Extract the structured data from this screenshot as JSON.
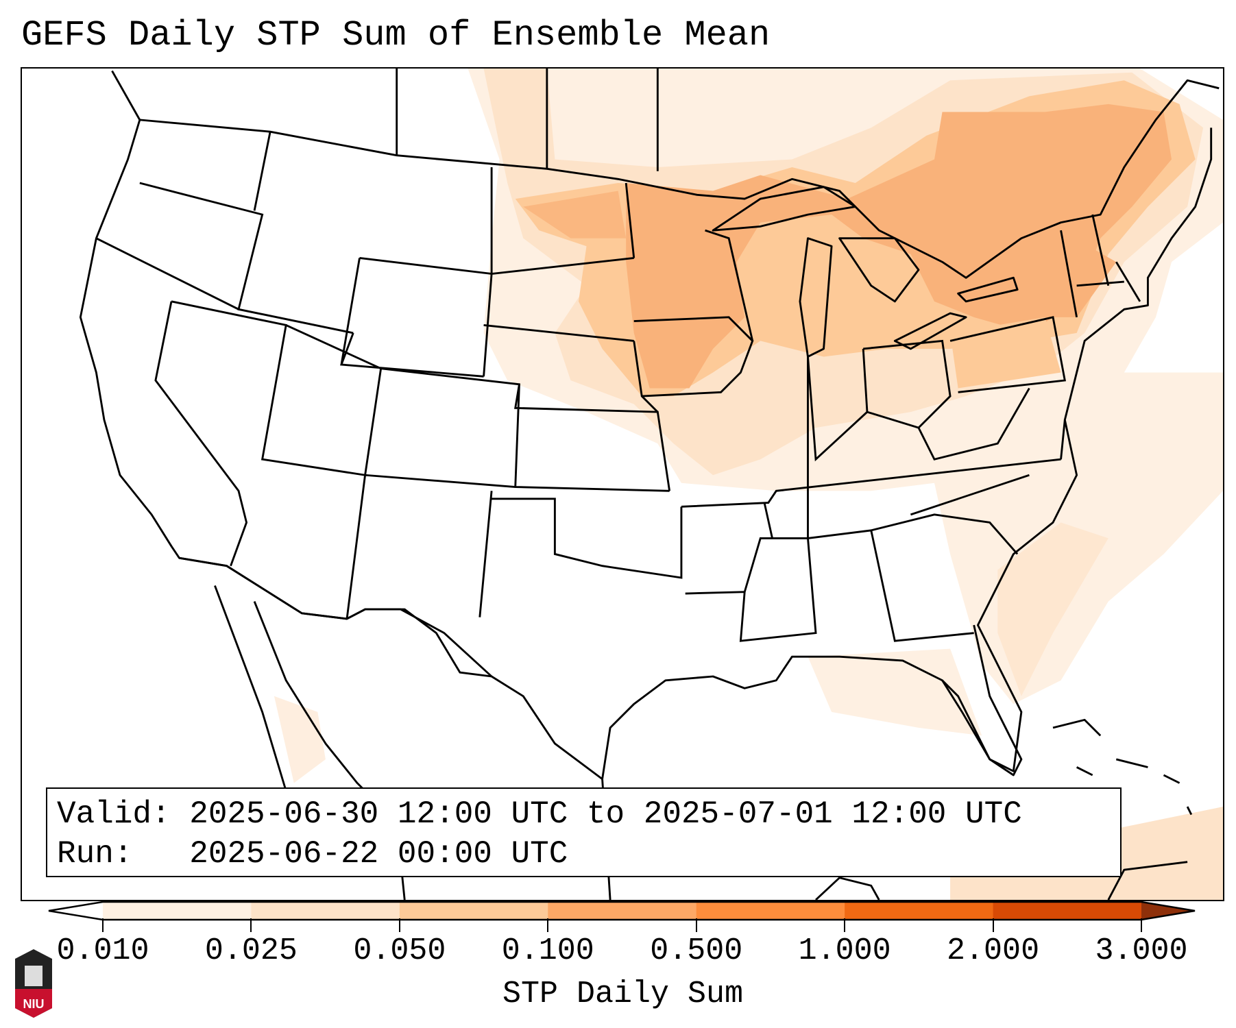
{
  "title": "GEFS Daily STP Sum of Ensemble Mean",
  "info": {
    "valid_line": "Valid: 2025-06-30 12:00 UTC to 2025-07-01 12:00 UTC",
    "run_line": "Run:   2025-06-22 00:00 UTC"
  },
  "colorbar": {
    "label": "STP Daily Sum",
    "ticks": [
      "0.010",
      "0.025",
      "0.050",
      "0.100",
      "0.500",
      "1.000",
      "2.000",
      "3.000"
    ],
    "colors": [
      "#fef0e2",
      "#fde3c9",
      "#fdca98",
      "#fca866",
      "#fd8d3c",
      "#f06913",
      "#d84a05",
      "#8e300a"
    ],
    "extend": "both"
  },
  "legend_colors": {
    "light": "#fef0e2",
    "pale": "#fde3c9",
    "peach": "#fdca98",
    "orange": "#fca866"
  },
  "logo": {
    "text": "NIU"
  }
}
